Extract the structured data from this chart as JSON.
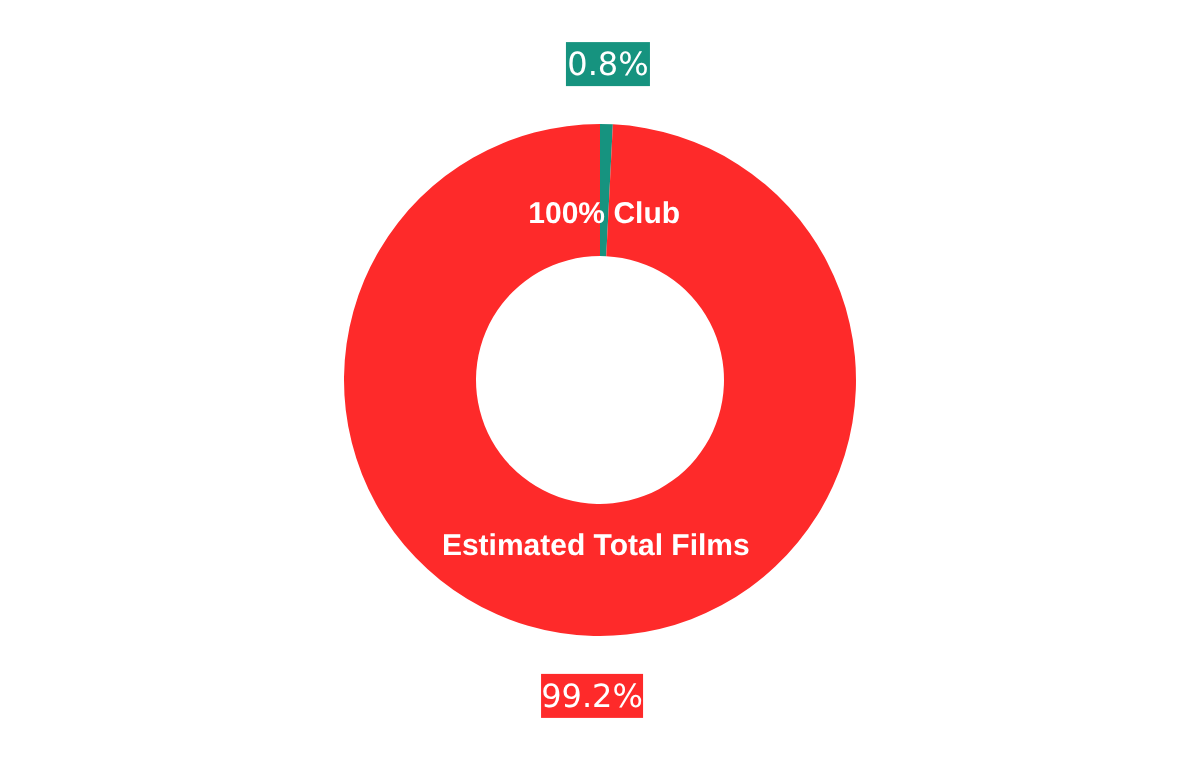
{
  "chart_data": {
    "type": "donut",
    "categories": [
      "100% Club",
      "Estimated Total Films"
    ],
    "values": [
      0.8,
      99.2
    ],
    "colors": [
      "#16937f",
      "#fe2a2a"
    ],
    "value_labels": [
      "0.8%",
      "99.2%"
    ]
  }
}
